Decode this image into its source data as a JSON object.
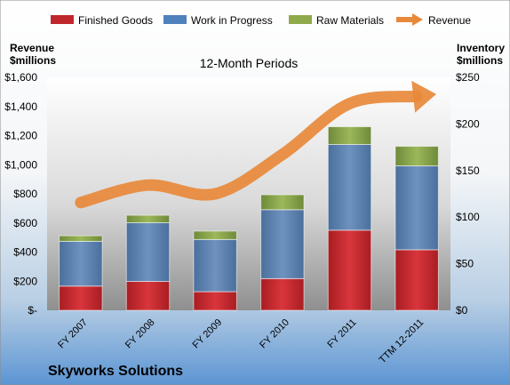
{
  "chart_data": {
    "type": "bar",
    "stacked": true,
    "title": "12-Month Periods",
    "company": "Skyworks Solutions",
    "categories": [
      "FY 2007",
      "FY 2008",
      "FY 2009",
      "FY 2010",
      "FY 2011",
      "TTM 12-2011"
    ],
    "y_left_label": [
      "Revenue",
      "$millions"
    ],
    "y_right_label": [
      "Inventory",
      "$millions"
    ],
    "y_left_range": [
      0,
      1600
    ],
    "y_left_ticks": [
      "$-",
      "$200",
      "$400",
      "$600",
      "$800",
      "$1,000",
      "$1,200",
      "$1,400",
      "$1,600"
    ],
    "y_left_tick_values": [
      0,
      200,
      400,
      600,
      800,
      1000,
      1200,
      1400,
      1600
    ],
    "y_right_range": [
      0,
      250
    ],
    "y_right_ticks": [
      "$0",
      "$50",
      "$100",
      "$150",
      "$200",
      "$250"
    ],
    "y_right_tick_values": [
      0,
      50,
      100,
      150,
      200,
      250
    ],
    "series": [
      {
        "name": "Finished Goods",
        "axis": "right",
        "color": "#c0272d",
        "values": [
          26,
          31,
          20,
          34,
          86,
          65
        ]
      },
      {
        "name": "Work in Progress",
        "axis": "right",
        "color": "#4f81bd",
        "values": [
          48,
          63,
          56,
          74,
          92,
          90
        ]
      },
      {
        "name": "Raw Materials",
        "axis": "right",
        "color": "#8faa4a",
        "values": [
          6,
          8,
          9,
          16,
          19,
          21
        ]
      },
      {
        "name": "Revenue",
        "axis": "left",
        "type": "line",
        "color": "#e8893a",
        "values": [
          740,
          860,
          800,
          1070,
          1420,
          1470
        ]
      }
    ],
    "legend_position": "top",
    "grid": false
  }
}
